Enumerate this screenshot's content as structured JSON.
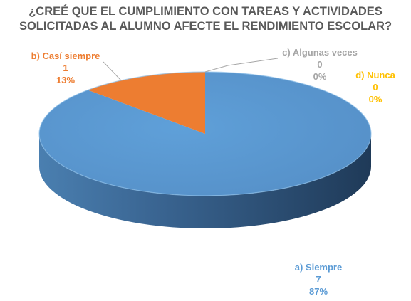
{
  "chart_data": {
    "type": "pie",
    "title": [
      "¿CREÉ QUE EL CUMPLIMIENTO CON TAREAS Y ACTIVIDADES",
      "SOLICITADAS AL ALUMNO AFECTE EL RENDIMIENTO ESCOLAR?"
    ],
    "slices": [
      {
        "label": "a) Siempre",
        "value": 7,
        "percent": "87%",
        "color": "#5b9bd5",
        "side_color": "#3e6f9e"
      },
      {
        "label": "b) Casí siempre",
        "value": 1,
        "percent": "13%",
        "color": "#ed7d31",
        "side_color": "#b25a1f"
      },
      {
        "label": "c) Algunas veces",
        "value": 0,
        "percent": "0%",
        "color": "#a5a5a5",
        "side_color": "#7c7c7c"
      },
      {
        "label": "d) Nunca",
        "value": 0,
        "percent": "0%",
        "color": "#ffc000",
        "side_color": "#bf9000"
      }
    ],
    "label_colors": [
      "#5b9bd5",
      "#ed7d31",
      "#a5a5a5",
      "#ffc000"
    ],
    "legend": "none",
    "three_d": true
  }
}
